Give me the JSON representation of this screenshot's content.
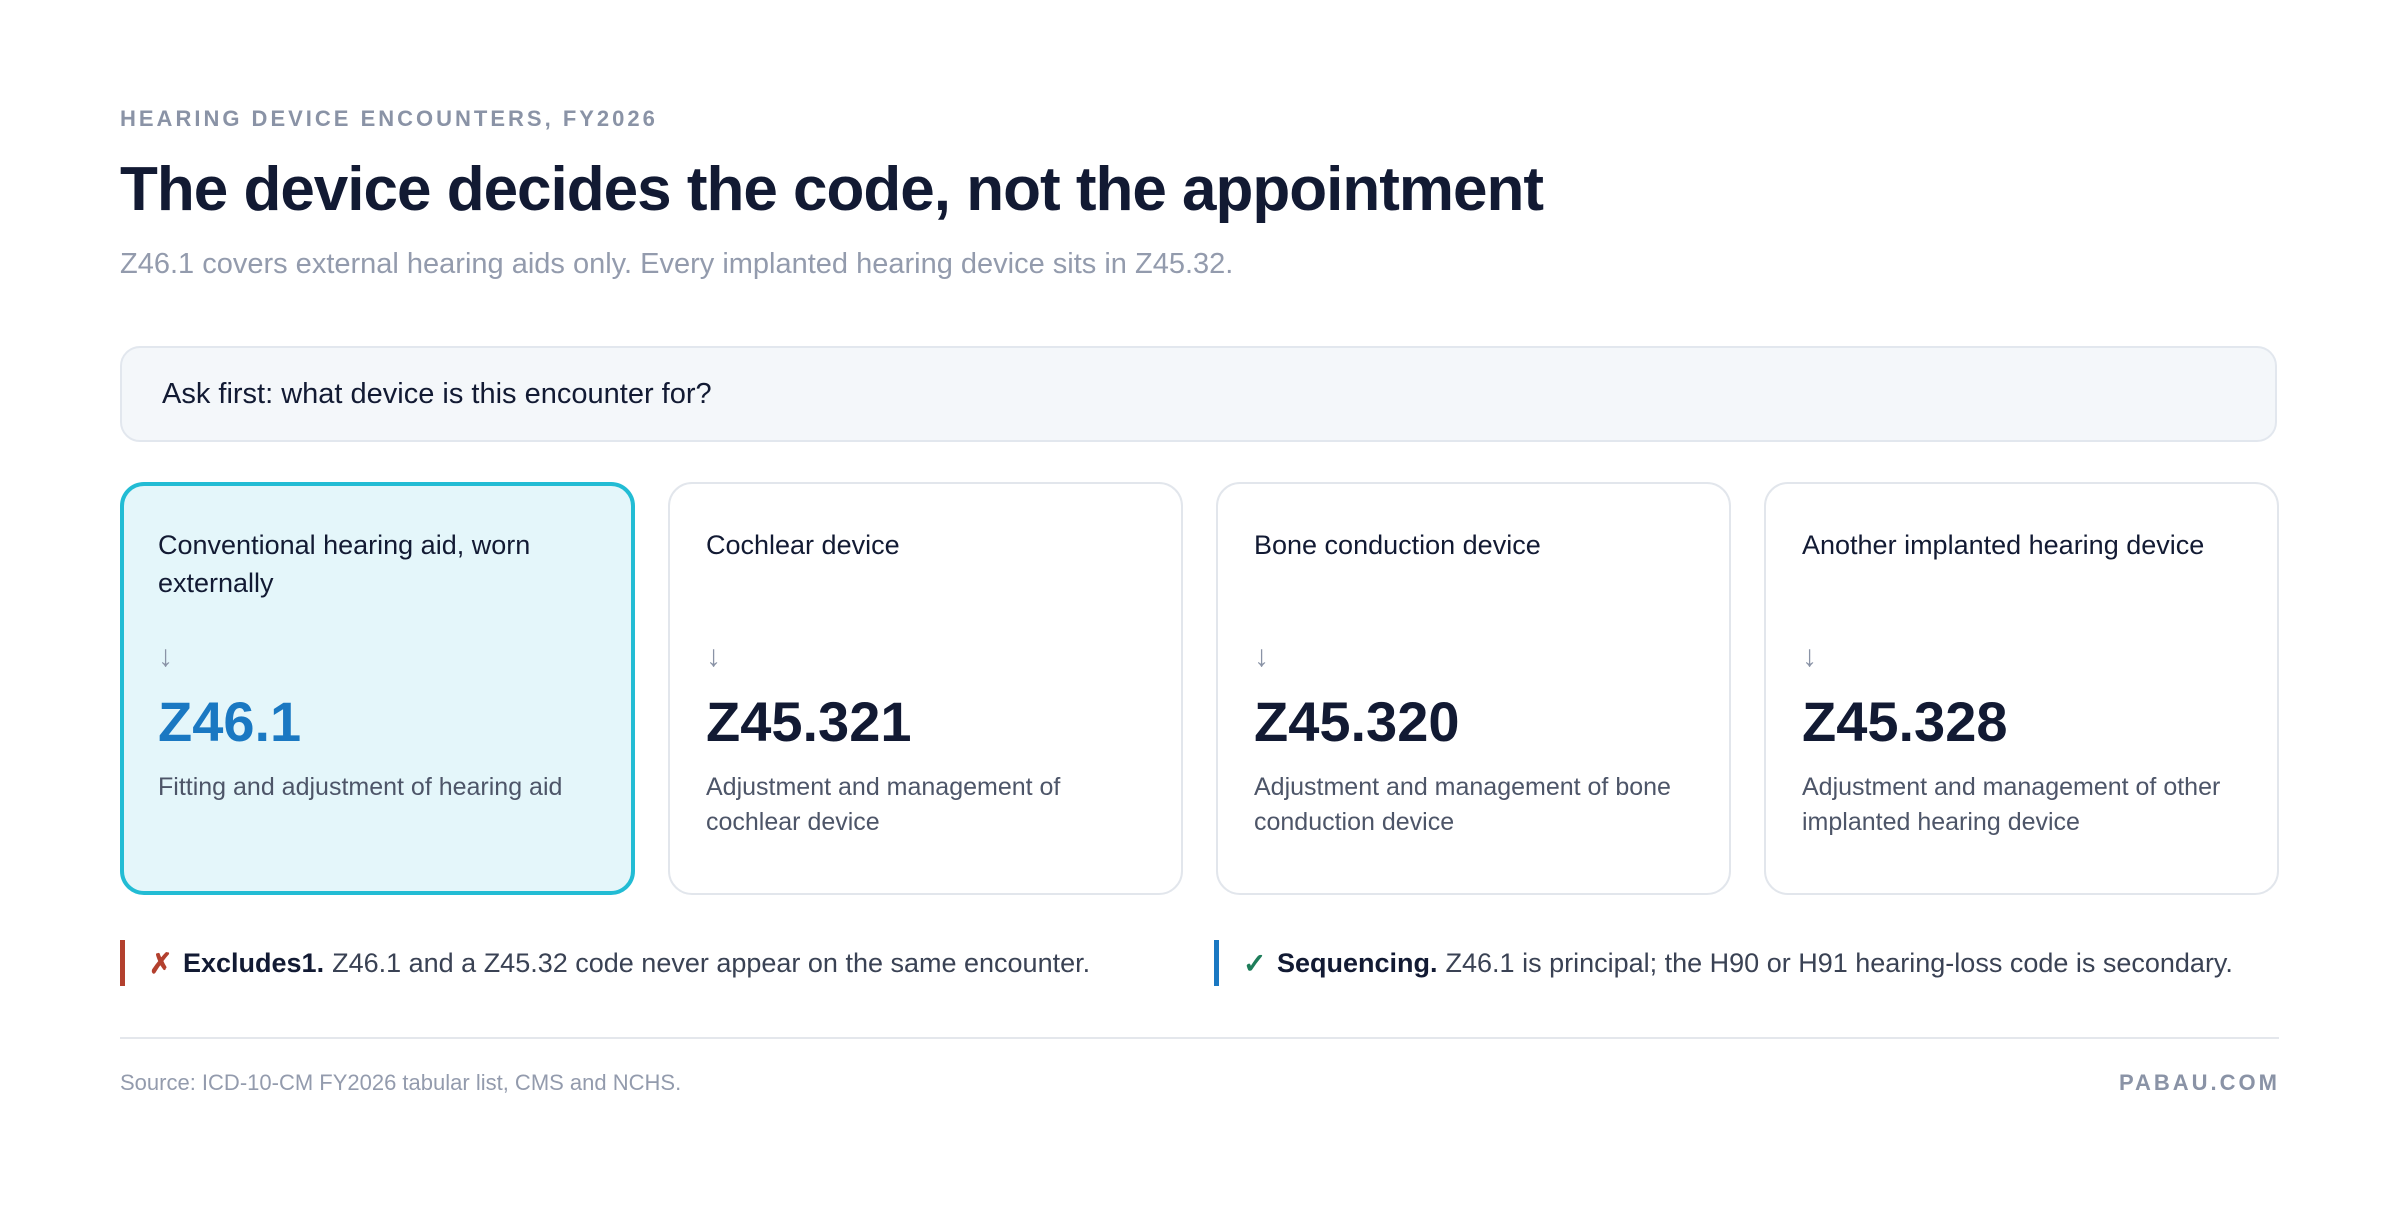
{
  "eyebrow": "HEARING DEVICE ENCOUNTERS, FY2026",
  "title": "The device decides the code, not the appointment",
  "subtitle": "Z46.1 covers external hearing aids only. Every implanted hearing device sits in Z45.32.",
  "question": "Ask first: what device is this encounter for?",
  "cards": [
    {
      "label": "Conventional hearing aid, worn externally",
      "code": "Z46.1",
      "description": "Fitting and adjustment of hearing aid"
    },
    {
      "label": "Cochlear device",
      "code": "Z45.321",
      "description": "Adjustment and management of cochlear device"
    },
    {
      "label": "Bone conduction device",
      "code": "Z45.320",
      "description": "Adjustment and management of bone conduction device"
    },
    {
      "label": "Another implanted hearing device",
      "code": "Z45.328",
      "description": "Adjustment and management of other implanted hearing device"
    }
  ],
  "notes": [
    {
      "lead": "Excludes1.",
      "text": "Z46.1 and a Z45.32 code never appear on the same encounter."
    },
    {
      "lead": "Sequencing.",
      "text": "Z46.1 is principal; the H90 or H91 hearing-loss code is secondary."
    }
  ],
  "footer": {
    "source": "Source: ICD-10-CM FY2026 tabular list, CMS and NCHS.",
    "brand": "PABAU.COM"
  }
}
